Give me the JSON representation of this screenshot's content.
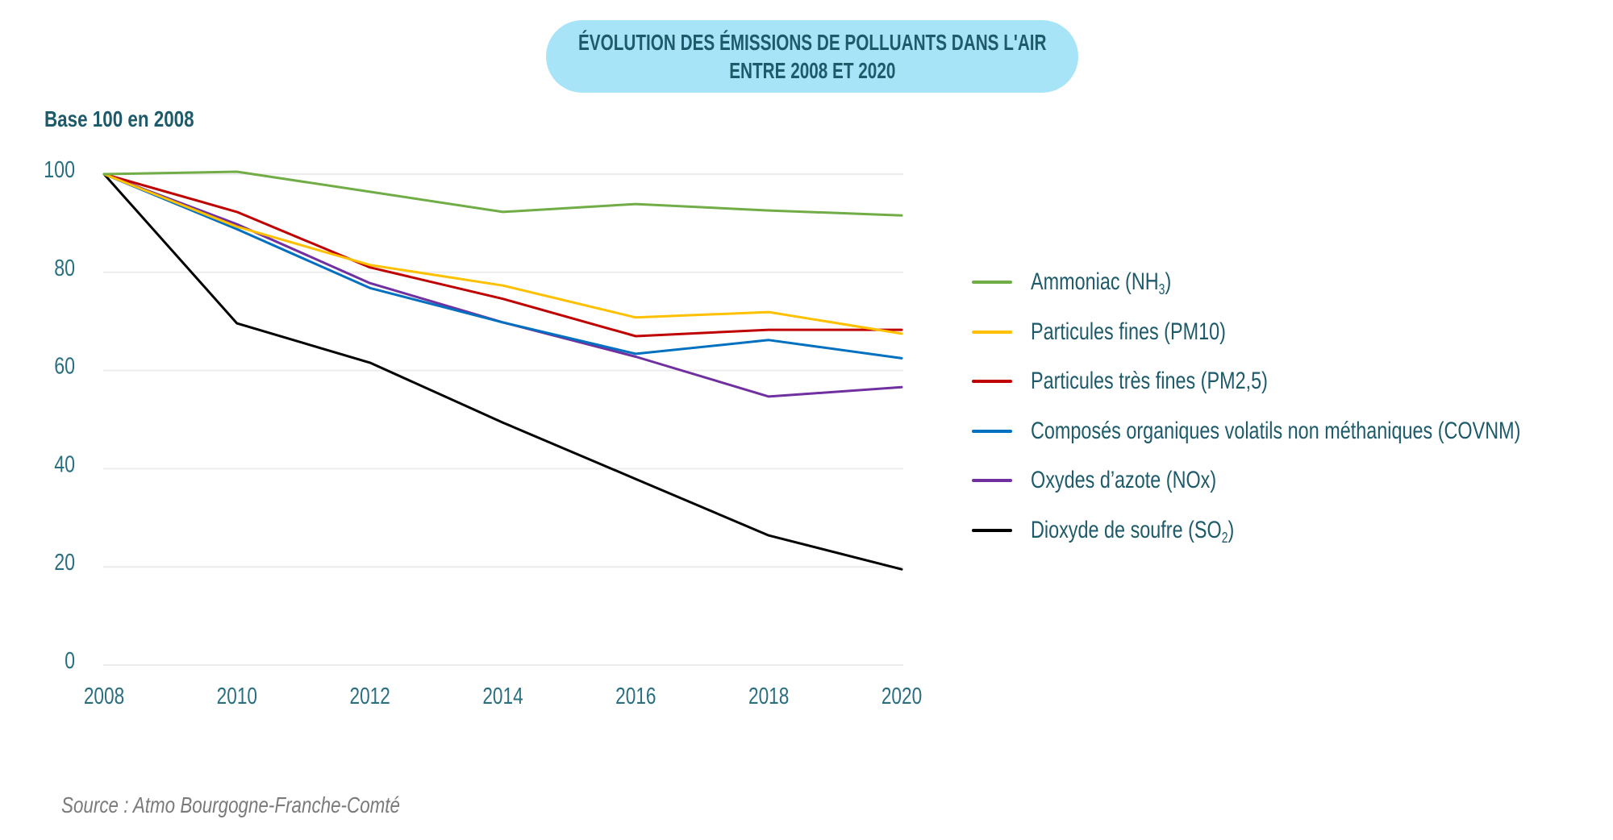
{
  "title": {
    "line1": "ÉVOLUTION DES ÉMISSIONS DE POLLUANTS DANS L'AIR",
    "line2": "ENTRE 2008 ET 2020"
  },
  "source": "Source : Atmo Bourgogne-Franche-Comté",
  "chart_data": {
    "type": "line",
    "title": "ÉVOLUTION DES ÉMISSIONS DE POLLUANTS DANS L'AIR ENTRE 2008 ET 2020",
    "ylabel": "Base 100 en 2008",
    "xlabel": "",
    "x": [
      "2008",
      "2010",
      "2012",
      "2014",
      "2016",
      "2018",
      "2020"
    ],
    "ylim": [
      0,
      100
    ],
    "yticks": [
      "0",
      "20",
      "40",
      "60",
      "80",
      "100"
    ],
    "ytick_values": [
      0,
      20,
      40,
      60,
      80,
      100
    ],
    "grid": "horizontal",
    "legend_position": "right",
    "series": [
      {
        "name": "Ammoniac (NH3)",
        "label_main": "Ammoniac (NH",
        "label_sub": "3",
        "label_end": ")",
        "color": "#70ad47",
        "values": [
          100,
          100.5,
          96.4,
          92.3,
          93.9,
          92.6,
          91.6
        ]
      },
      {
        "name": "Particules fines (PM10)",
        "label_main": "Particules fines (PM10)",
        "label_sub": "",
        "label_end": "",
        "color": "#ffc000",
        "values": [
          100,
          89.3,
          81.5,
          77.3,
          70.8,
          71.9,
          67.5
        ]
      },
      {
        "name": "Particules très fines (PM2,5)",
        "label_main": "Particules très fines (PM2,5)",
        "label_sub": "",
        "label_end": "",
        "color": "#c00000",
        "values": [
          100,
          92.3,
          81.0,
          74.6,
          67.0,
          68.3,
          68.3
        ]
      },
      {
        "name": "Composés organiques volatils non méthaniques (COVNM)",
        "label_main": "Composés organiques volatils non méthaniques (COVNM)",
        "label_sub": "",
        "label_end": "",
        "color": "#0070c0",
        "values": [
          100,
          88.8,
          76.8,
          69.8,
          63.4,
          66.2,
          62.5
        ]
      },
      {
        "name": "Oxydes d'azote (NOx)",
        "label_main": "Oxydes d’azote (NOx)",
        "label_sub": "",
        "label_end": "",
        "color": "#7030a0",
        "values": [
          100,
          89.8,
          77.8,
          69.8,
          62.8,
          54.7,
          56.6
        ]
      },
      {
        "name": "Dioxyde de soufre (SO2)",
        "label_main": "Dioxyde de soufre (SO",
        "label_sub": "2",
        "label_end": ")",
        "color": "#000000",
        "values": [
          100,
          69.6,
          61.6,
          49.4,
          37.9,
          26.4,
          19.5
        ]
      }
    ]
  }
}
